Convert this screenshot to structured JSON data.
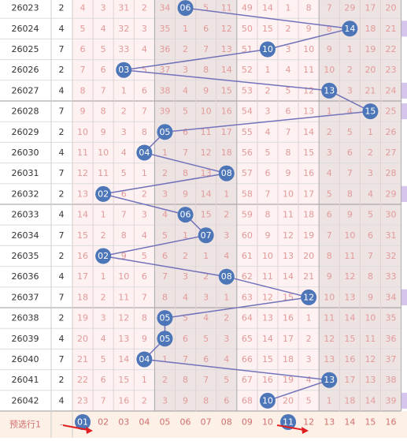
{
  "table": {
    "rows": [
      {
        "period": "26023",
        "value": "2",
        "misses": [
          4,
          3,
          31,
          2,
          34,
          null,
          5,
          11,
          49,
          14,
          1,
          8,
          7,
          29,
          17,
          20
        ],
        "hit": "06"
      },
      {
        "period": "26024",
        "value": "4",
        "misses": [
          5,
          4,
          32,
          3,
          35,
          1,
          6,
          12,
          50,
          15,
          2,
          9,
          8,
          null,
          18,
          21
        ],
        "hit": "14"
      },
      {
        "period": "26025",
        "value": "7",
        "misses": [
          6,
          5,
          33,
          4,
          36,
          2,
          7,
          13,
          51,
          null,
          3,
          10,
          9,
          1,
          19,
          22
        ],
        "hit": "10"
      },
      {
        "period": "26026",
        "value": "2",
        "misses": [
          7,
          6,
          null,
          5,
          37,
          3,
          8,
          14,
          52,
          1,
          4,
          11,
          10,
          2,
          20,
          23
        ],
        "hit": "03"
      },
      {
        "period": "26027",
        "value": "4",
        "misses": [
          8,
          7,
          1,
          6,
          38,
          4,
          9,
          15,
          53,
          2,
          5,
          12,
          null,
          3,
          21,
          24
        ],
        "hit": "13"
      },
      {
        "period": "26028",
        "value": "7",
        "misses": [
          9,
          8,
          2,
          7,
          39,
          5,
          10,
          16,
          54,
          3,
          6,
          13,
          1,
          4,
          null,
          25
        ],
        "hit": "15"
      },
      {
        "period": "26029",
        "value": "2",
        "misses": [
          10,
          9,
          3,
          8,
          null,
          6,
          11,
          17,
          55,
          4,
          7,
          14,
          2,
          5,
          1,
          26
        ],
        "hit": "05"
      },
      {
        "period": "26030",
        "value": "4",
        "misses": [
          11,
          10,
          4,
          null,
          1,
          7,
          12,
          18,
          56,
          5,
          8,
          15,
          3,
          6,
          2,
          27
        ],
        "hit": "04"
      },
      {
        "period": "26031",
        "value": "7",
        "misses": [
          12,
          11,
          5,
          1,
          2,
          8,
          13,
          null,
          57,
          6,
          9,
          16,
          4,
          7,
          3,
          28
        ],
        "hit": "08"
      },
      {
        "period": "26032",
        "value": "2",
        "misses": [
          13,
          null,
          6,
          2,
          3,
          9,
          14,
          1,
          58,
          7,
          10,
          17,
          5,
          8,
          4,
          29
        ],
        "hit": "02"
      },
      {
        "period": "26033",
        "value": "4",
        "misses": [
          14,
          1,
          7,
          3,
          4,
          null,
          15,
          2,
          59,
          8,
          11,
          18,
          6,
          9,
          5,
          30
        ],
        "hit": "06"
      },
      {
        "period": "26034",
        "value": "7",
        "misses": [
          15,
          2,
          8,
          4,
          5,
          1,
          null,
          3,
          60,
          9,
          12,
          19,
          7,
          10,
          6,
          31
        ],
        "hit": "07"
      },
      {
        "period": "26035",
        "value": "2",
        "misses": [
          16,
          null,
          9,
          5,
          6,
          2,
          1,
          4,
          61,
          10,
          13,
          20,
          8,
          11,
          7,
          32
        ],
        "hit": "02"
      },
      {
        "period": "26036",
        "value": "4",
        "misses": [
          17,
          1,
          10,
          6,
          7,
          3,
          2,
          null,
          62,
          11,
          14,
          21,
          9,
          12,
          8,
          33
        ],
        "hit": "08"
      },
      {
        "period": "26037",
        "value": "7",
        "misses": [
          18,
          2,
          11,
          7,
          8,
          4,
          3,
          1,
          63,
          12,
          15,
          null,
          10,
          13,
          9,
          34
        ],
        "hit": "12"
      },
      {
        "period": "26038",
        "value": "2",
        "misses": [
          19,
          3,
          12,
          8,
          null,
          5,
          4,
          2,
          64,
          13,
          16,
          1,
          11,
          14,
          10,
          35
        ],
        "hit": "05"
      },
      {
        "period": "26039",
        "value": "4",
        "misses": [
          20,
          4,
          13,
          9,
          null,
          6,
          5,
          3,
          65,
          14,
          17,
          2,
          12,
          15,
          11,
          36
        ],
        "hit": "05"
      },
      {
        "period": "26040",
        "value": "7",
        "misses": [
          21,
          5,
          14,
          null,
          1,
          7,
          6,
          4,
          66,
          15,
          18,
          3,
          13,
          16,
          12,
          37
        ],
        "hit": "04"
      },
      {
        "period": "26041",
        "value": "2",
        "misses": [
          22,
          6,
          15,
          1,
          2,
          8,
          7,
          5,
          67,
          16,
          19,
          4,
          null,
          17,
          13,
          38
        ],
        "hit": "13"
      },
      {
        "period": "26042",
        "value": "4",
        "misses": [
          23,
          7,
          16,
          2,
          3,
          9,
          8,
          6,
          68,
          null,
          20,
          5,
          1,
          18,
          14,
          39
        ],
        "hit": "10"
      }
    ],
    "footer": {
      "label": "预选行1",
      "value": "-",
      "numbers": [
        {
          "text": "01",
          "circled": true
        },
        {
          "text": "02"
        },
        {
          "text": "03"
        },
        {
          "text": "04"
        },
        {
          "text": "05"
        },
        {
          "text": "06"
        },
        {
          "text": "07"
        },
        {
          "text": "08"
        },
        {
          "text": "09"
        },
        {
          "text": "10"
        },
        {
          "text": "11",
          "circled": true
        },
        {
          "text": "12"
        },
        {
          "text": "13"
        },
        {
          "text": "14"
        },
        {
          "text": "15"
        },
        {
          "text": "16"
        }
      ]
    }
  }
}
